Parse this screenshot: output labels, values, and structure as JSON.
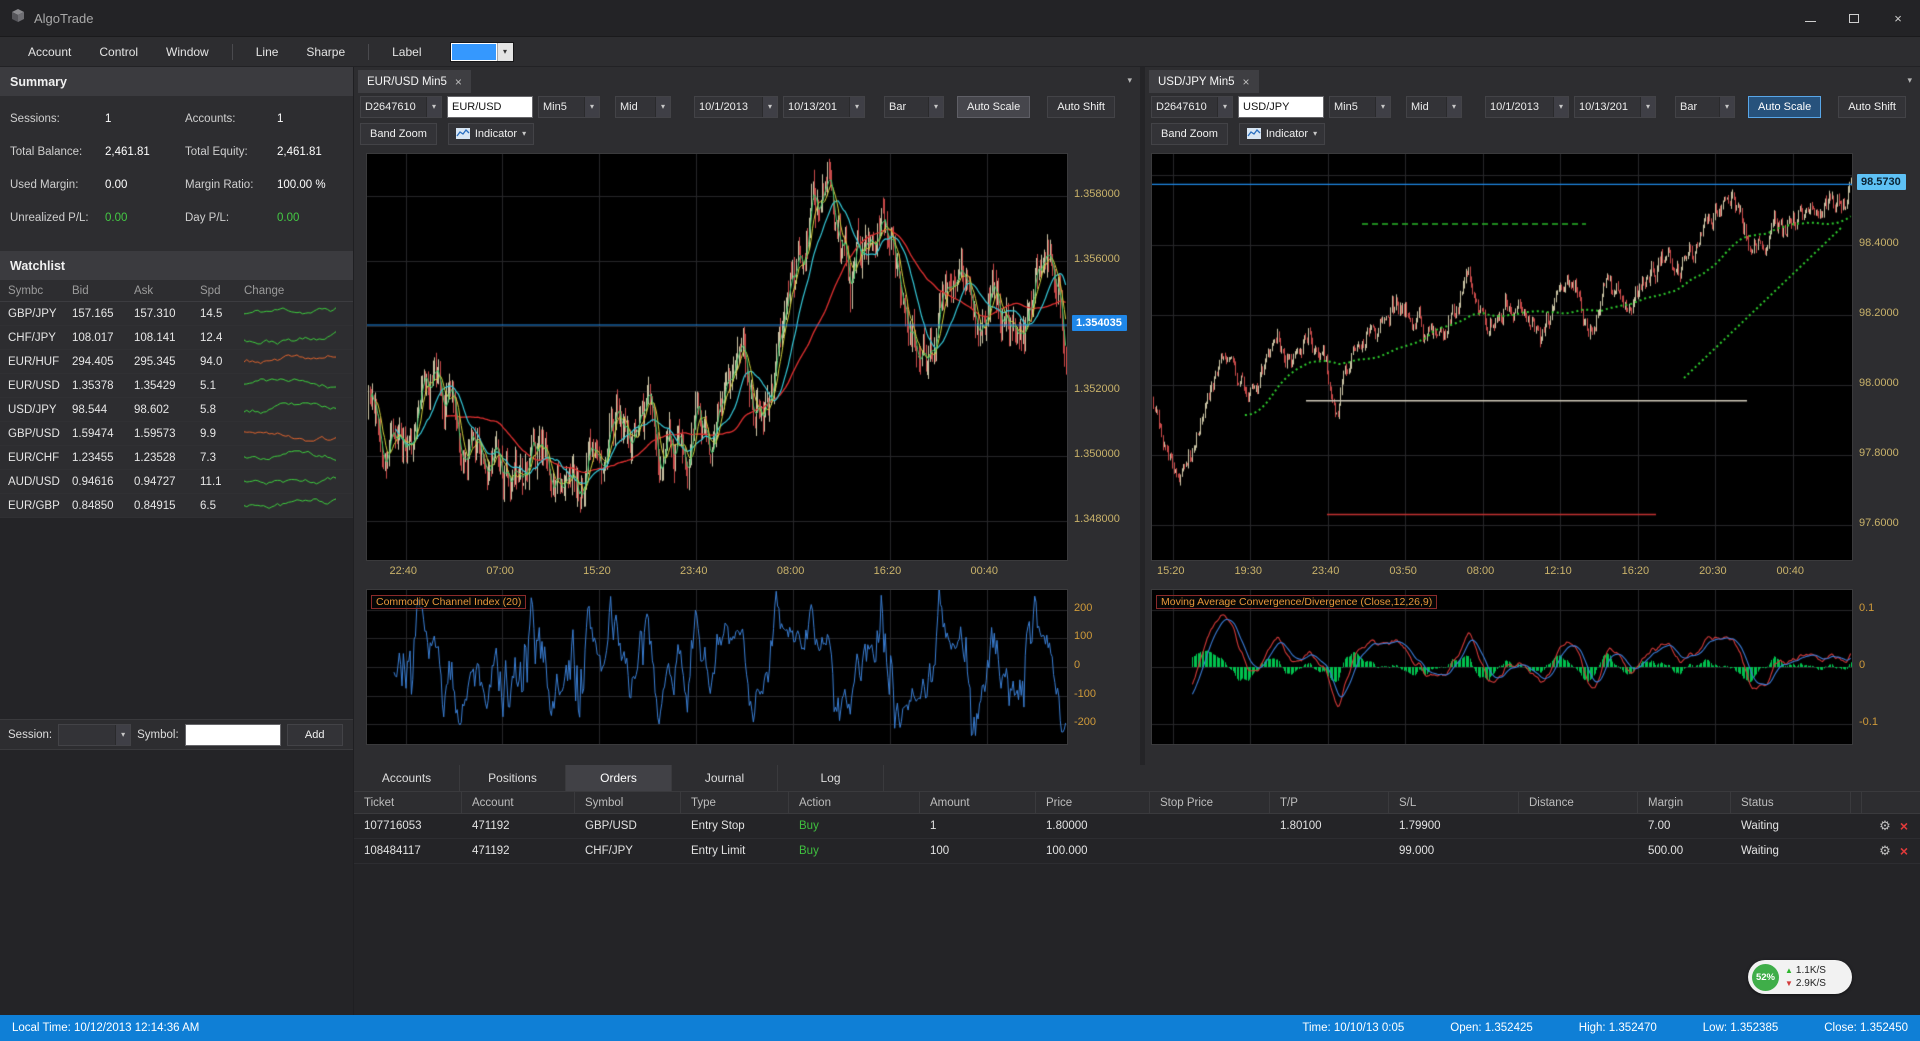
{
  "window": {
    "title": "AlgoTrade"
  },
  "menubar": {
    "groups": [
      [
        "Account",
        "Control",
        "Window"
      ],
      [
        "Line",
        "Sharpe"
      ],
      [
        "Label"
      ]
    ],
    "label_color": "#3598fe"
  },
  "summary": {
    "title": "Summary",
    "rows": [
      {
        "label1": "Sessions:",
        "value1": "1",
        "label2": "Accounts:",
        "value2": "1",
        "green": false
      },
      {
        "label1": "Total Balance:",
        "value1": "2,461.81",
        "label2": "Total Equity:",
        "value2": "2,461.81",
        "green": false
      },
      {
        "label1": "Used Margin:",
        "value1": "0.00",
        "label2": "Margin Ratio:",
        "value2": "100.00 %",
        "green": false
      },
      {
        "label1": "Unrealized P/L:",
        "value1": "0.00",
        "label2": "Day P/L:",
        "value2": "0.00",
        "green": true
      }
    ]
  },
  "watchlist": {
    "title": "Watchlist",
    "columns": [
      "Symbc",
      "Bid",
      "Ask",
      "Spd",
      "Change"
    ],
    "rows": [
      {
        "symbol": "GBP/JPY",
        "bid": "157.165",
        "ask": "157.310",
        "spd": "14.5",
        "spark": {
          "seed": 11,
          "trend": 0.25,
          "color": "#3ed03e"
        }
      },
      {
        "symbol": "CHF/JPY",
        "bid": "108.017",
        "ask": "108.141",
        "spd": "12.4",
        "spark": {
          "seed": 23,
          "trend": 0.2,
          "color": "#3ed03e"
        }
      },
      {
        "symbol": "EUR/HUF",
        "bid": "294.405",
        "ask": "295.345",
        "spd": "94.0",
        "spark": {
          "seed": 37,
          "trend": -0.1,
          "color": "#e0642e"
        }
      },
      {
        "symbol": "EUR/USD",
        "bid": "1.35378",
        "ask": "1.35429",
        "spd": "5.1",
        "spark": {
          "seed": 41,
          "trend": 0.3,
          "color": "#3ed03e"
        }
      },
      {
        "symbol": "USD/JPY",
        "bid": "98.544",
        "ask": "98.602",
        "spd": "5.8",
        "spark": {
          "seed": 53,
          "trend": 0.25,
          "color": "#3ed03e"
        }
      },
      {
        "symbol": "GBP/USD",
        "bid": "1.59474",
        "ask": "1.59573",
        "spd": "9.9",
        "spark": {
          "seed": 67,
          "trend": -0.25,
          "color": "#e0642e"
        }
      },
      {
        "symbol": "EUR/CHF",
        "bid": "1.23455",
        "ask": "1.23528",
        "spd": "7.3",
        "spark": {
          "seed": 71,
          "trend": 0.2,
          "color": "#3ed03e"
        }
      },
      {
        "symbol": "AUD/USD",
        "bid": "0.94616",
        "ask": "0.94727",
        "spd": "11.1",
        "spark": {
          "seed": 83,
          "trend": 0.15,
          "color": "#3ed03e"
        }
      },
      {
        "symbol": "EUR/GBP",
        "bid": "0.84850",
        "ask": "0.84915",
        "spd": "6.5",
        "spark": {
          "seed": 97,
          "trend": 0.3,
          "color": "#3ed03e"
        }
      }
    ],
    "session_label": "Session:",
    "symbol_label": "Symbol:",
    "add_label": "Add"
  },
  "charts": [
    {
      "key": "eurusd",
      "tab": "EUR/USD Min5",
      "toolbar": {
        "session": "D2647610",
        "symbol": "EUR/USD",
        "period": "Min5",
        "price_type": "Mid",
        "date_from": "10/1/2013",
        "date_to": "10/13/201",
        "chart_type": "Bar",
        "auto_scale": "Auto Scale",
        "auto_shift": "Auto Shift",
        "band_zoom": "Band Zoom",
        "indicator": "Indicator"
      },
      "auto_scale_style": "pressed",
      "y_ticks": [
        "1.358000",
        "1.356000",
        "1.352000",
        "1.350000",
        "1.348000"
      ],
      "price_tag": "1.354035",
      "x_ticks": [
        "22:40",
        "07:00",
        "15:20",
        "23:40",
        "08:00",
        "16:20",
        "00:40"
      ],
      "indicator_title": "Commodity Channel Index (20)",
      "indicator_y_ticks": [
        "200",
        "100",
        "0",
        "-100",
        "-200"
      ]
    },
    {
      "key": "usdjpy",
      "tab": "USD/JPY Min5",
      "toolbar": {
        "session": "D2647610",
        "symbol": "USD/JPY",
        "period": "Min5",
        "price_type": "Mid",
        "date_from": "10/1/2013",
        "date_to": "10/13/201",
        "chart_type": "Bar",
        "auto_scale": "Auto Scale",
        "auto_shift": "Auto Shift",
        "band_zoom": "Band Zoom",
        "indicator": "Indicator"
      },
      "auto_scale_style": "blue",
      "y_ticks": [
        "98.4000",
        "98.2000",
        "98.0000",
        "97.8000",
        "97.6000"
      ],
      "price_tag": "98.5730",
      "x_ticks": [
        "15:20",
        "19:30",
        "23:40",
        "03:50",
        "08:00",
        "12:10",
        "16:20",
        "20:30",
        "00:40"
      ],
      "indicator_title": "Moving Average Convergence/Divergence (Close,12,26,9)",
      "indicator_y_ticks": [
        "0.1",
        "0",
        "-0.1"
      ]
    }
  ],
  "chart_data": [
    {
      "type": "bar",
      "symbol": "EUR/USD",
      "interval": "Min5",
      "ymin": 1.3468,
      "ymax": 1.3593,
      "y_gridlines": [
        1.358,
        1.356,
        1.354,
        1.352,
        1.35,
        1.348
      ],
      "current_price": 1.354035,
      "price_line_color": "#1e88e5",
      "tag_bg": "#1f87e8",
      "tag_fg": "#ffffff",
      "x_frac_start": 0.055,
      "x_frac_end": 0.885,
      "candles": 520,
      "seed": 7,
      "noise": 0.00042,
      "wick": 0.00045,
      "up_color": "#ccc6a6",
      "down_color": "#c94a4a",
      "path": [
        [
          0,
          1.3521
        ],
        [
          0.02,
          1.3512
        ],
        [
          0.045,
          1.3519
        ],
        [
          0.07,
          1.3508
        ],
        [
          0.095,
          1.3516
        ],
        [
          0.12,
          1.3513
        ],
        [
          0.145,
          1.3506
        ],
        [
          0.17,
          1.3498
        ],
        [
          0.2,
          1.3492
        ],
        [
          0.23,
          1.3488
        ],
        [
          0.26,
          1.3494
        ],
        [
          0.29,
          1.3489
        ],
        [
          0.32,
          1.3497
        ],
        [
          0.35,
          1.3504
        ],
        [
          0.38,
          1.3508
        ],
        [
          0.41,
          1.3501
        ],
        [
          0.44,
          1.351
        ],
        [
          0.47,
          1.3514
        ],
        [
          0.5,
          1.3509
        ],
        [
          0.53,
          1.3518
        ],
        [
          0.56,
          1.3521
        ],
        [
          0.585,
          1.353
        ],
        [
          0.61,
          1.3552
        ],
        [
          0.635,
          1.3576
        ],
        [
          0.655,
          1.3581
        ],
        [
          0.675,
          1.3566
        ],
        [
          0.695,
          1.3556
        ],
        [
          0.715,
          1.3568
        ],
        [
          0.735,
          1.3573
        ],
        [
          0.755,
          1.3562
        ],
        [
          0.775,
          1.3549
        ],
        [
          0.8,
          1.3545
        ],
        [
          0.825,
          1.3552
        ],
        [
          0.85,
          1.3548
        ],
        [
          0.875,
          1.3538
        ],
        [
          0.9,
          1.3543
        ],
        [
          0.925,
          1.3535
        ],
        [
          0.95,
          1.3544
        ],
        [
          0.975,
          1.3547
        ],
        [
          1,
          1.3539
        ]
      ],
      "mas": [
        {
          "period": 60,
          "color": "#e03030",
          "width": 1.3
        },
        {
          "period": 22,
          "color": "#35c8d8",
          "width": 1.2
        },
        {
          "period": 8,
          "color": "#cfd13c",
          "width": 1
        },
        {
          "period": 4,
          "color": "#3ac46a",
          "width": 1
        }
      ],
      "segments": [],
      "indicator": {
        "kind": "cci",
        "period": 20,
        "range": 270,
        "ticks": [
          200,
          100,
          0,
          -100,
          -200
        ],
        "color": "#3a7fd5"
      }
    },
    {
      "type": "bar",
      "symbol": "USD/JPY",
      "interval": "Min5",
      "ymin": 97.5,
      "ymax": 98.66,
      "y_gridlines": [
        98.6,
        98.4,
        98.2,
        98.0,
        97.8,
        97.6
      ],
      "current_price": 98.573,
      "price_line_color": "#1e88e5",
      "tag_bg": "#5ec1f5",
      "tag_fg": "#0a2233",
      "x_frac_start": 0.03,
      "x_frac_end": 0.915,
      "candles": 520,
      "seed": 21,
      "noise": 0.02,
      "wick": 0.012,
      "up_color": "#ccc6a6",
      "down_color": "#c94a4a",
      "path": [
        [
          0,
          97.96
        ],
        [
          0.02,
          97.84
        ],
        [
          0.04,
          97.74
        ],
        [
          0.06,
          97.88
        ],
        [
          0.08,
          98.02
        ],
        [
          0.1,
          98.08
        ],
        [
          0.12,
          97.97
        ],
        [
          0.14,
          97.92
        ],
        [
          0.16,
          98.02
        ],
        [
          0.18,
          98.08
        ],
        [
          0.2,
          98.05
        ],
        [
          0.22,
          98.12
        ],
        [
          0.245,
          98.16
        ],
        [
          0.265,
          97.89
        ],
        [
          0.285,
          98.1
        ],
        [
          0.305,
          98.18
        ],
        [
          0.33,
          98.24
        ],
        [
          0.355,
          98.28
        ],
        [
          0.38,
          98.18
        ],
        [
          0.405,
          98.12
        ],
        [
          0.43,
          98.22
        ],
        [
          0.455,
          98.26
        ],
        [
          0.48,
          98.17
        ],
        [
          0.505,
          98.27
        ],
        [
          0.53,
          98.21
        ],
        [
          0.555,
          98.12
        ],
        [
          0.58,
          98.22
        ],
        [
          0.605,
          98.28
        ],
        [
          0.63,
          98.18
        ],
        [
          0.655,
          98.26
        ],
        [
          0.68,
          98.21
        ],
        [
          0.705,
          98.28
        ],
        [
          0.73,
          98.34
        ],
        [
          0.755,
          98.28
        ],
        [
          0.78,
          98.38
        ],
        [
          0.805,
          98.45
        ],
        [
          0.83,
          98.49
        ],
        [
          0.855,
          98.38
        ],
        [
          0.88,
          98.44
        ],
        [
          0.905,
          98.4
        ],
        [
          0.93,
          98.48
        ],
        [
          0.955,
          98.43
        ],
        [
          0.975,
          98.52
        ],
        [
          1,
          98.56
        ]
      ],
      "mas": [
        {
          "period": 70,
          "color": "#2ecb2e",
          "width": 2,
          "dash": [
            2,
            3
          ]
        }
      ],
      "segments": [
        {
          "y": 98.46,
          "x0": 0.3,
          "x1": 0.62,
          "color": "#28b828",
          "dash": [
            6,
            4
          ],
          "width": 1.4
        },
        {
          "y": 97.955,
          "x0": 0.22,
          "x1": 0.85,
          "color": "#cfc9b8",
          "width": 1.4
        },
        {
          "y": 97.63,
          "x0": 0.25,
          "x1": 0.72,
          "color": "#c23030",
          "width": 1.4
        },
        {
          "diag": true,
          "x0": 0.76,
          "y0": 98.02,
          "x1": 0.985,
          "y1": 98.45,
          "color": "#2ecb2e",
          "dash": [
            2,
            3
          ],
          "width": 2
        }
      ],
      "indicator": {
        "kind": "macd",
        "fast": 12,
        "slow": 26,
        "signal": 9,
        "range": 0.135,
        "gain": 1.5,
        "ticks": [
          0.1,
          0,
          -0.1
        ],
        "hist_color": "#00c24e",
        "macd_color": "#d03838",
        "signal_color": "#3a7bd5"
      }
    }
  ],
  "bottom": {
    "tabs": [
      "Accounts",
      "Positions",
      "Orders",
      "Journal",
      "Log"
    ],
    "active_tab": "Orders",
    "orders": {
      "columns": [
        "Ticket",
        "Account",
        "Symbol",
        "Type",
        "Action",
        "Amount",
        "Price",
        "Stop Price",
        "T/P",
        "S/L",
        "Distance",
        "Margin",
        "Status"
      ],
      "rows": [
        {
          "cells": [
            "107716053",
            "471192",
            "GBP/USD",
            "Entry Stop",
            "Buy",
            "1",
            "1.80000",
            "",
            "1.80100",
            "1.79900",
            "",
            "7.00",
            "Waiting"
          ]
        },
        {
          "cells": [
            "108484117",
            "471192",
            "CHF/JPY",
            "Entry Limit",
            "Buy",
            "100",
            "100.000",
            "",
            "",
            "99.000",
            "",
            "500.00",
            "Waiting"
          ]
        }
      ]
    }
  },
  "statusbar": {
    "local_time": "Local Time: 10/12/2013 12:14:36 AM",
    "fields": [
      "Time: 10/10/13 0:05",
      "Open: 1.352425",
      "High: 1.352470",
      "Low: 1.352385",
      "Close: 1.352450"
    ]
  },
  "network": {
    "percent": "52%",
    "up": "1.1K/S",
    "down": "2.9K/S"
  }
}
